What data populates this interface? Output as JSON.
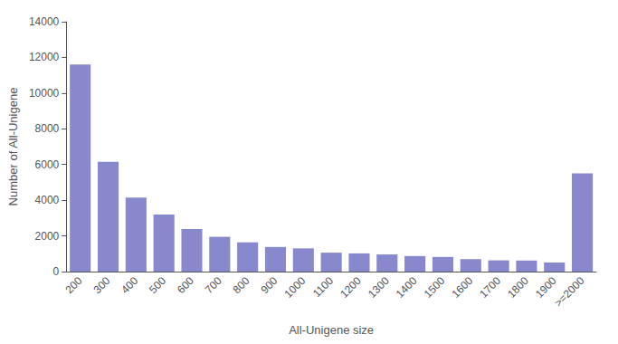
{
  "chart_data": {
    "type": "bar",
    "categories": [
      "200",
      "300",
      "400",
      "500",
      "600",
      "700",
      "800",
      "900",
      "1000",
      "1100",
      "1200",
      "1300",
      "1400",
      "1500",
      "1600",
      "1700",
      "1800",
      "1900",
      ">=2000"
    ],
    "values": [
      11600,
      6150,
      4150,
      3200,
      2380,
      1950,
      1640,
      1380,
      1300,
      1060,
      1020,
      960,
      870,
      820,
      700,
      630,
      620,
      510,
      5500
    ],
    "color": "#8888cc",
    "xlabel": "All-Unigene size",
    "ylabel": "Number of All-Unigene",
    "ylim": [
      0,
      14000
    ],
    "yticks": [
      0,
      2000,
      4000,
      6000,
      8000,
      10000,
      12000,
      14000
    ],
    "grid": false
  }
}
